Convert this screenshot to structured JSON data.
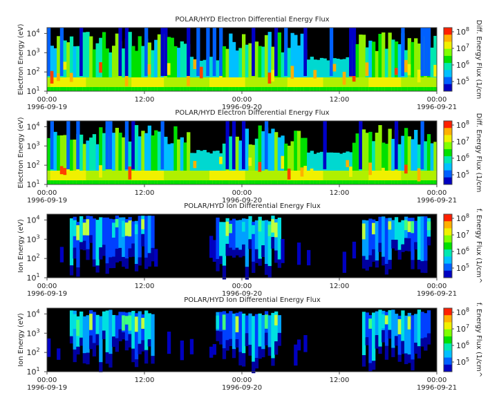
{
  "chart_data": [
    {
      "type": "heatmap",
      "title": "POLAR/HYD  Electron Differential Energy Flux",
      "ylabel": "Electron Energy (eV)",
      "colorbar_label": "Diff. Energy Flux (1/cm",
      "y_scale": "log",
      "ylim": [
        10,
        20000
      ],
      "y_ticks": [
        "10",
        "10",
        "10",
        "10"
      ],
      "y_tick_exps": [
        "1",
        "2",
        "3",
        "4"
      ],
      "x_ticks": [
        "00:00",
        "12:00",
        "00:00",
        "12:00",
        "00:00"
      ],
      "x_dates": [
        "1996-09-19",
        "1996-09-20",
        "1996-09-21"
      ],
      "cbar_ticks": [
        "10",
        "10",
        "10",
        "10"
      ],
      "cbar_exps": [
        "5",
        "6",
        "7",
        "8"
      ]
    },
    {
      "type": "heatmap",
      "title": "POLAR/HYD  Electron Differential Energy Flux",
      "ylabel": "Electron Energy (eV)",
      "colorbar_label": "Diff. Energy Flux (1/cm",
      "y_scale": "log",
      "ylim": [
        10,
        20000
      ],
      "y_ticks": [
        "10",
        "10",
        "10",
        "10"
      ],
      "y_tick_exps": [
        "1",
        "2",
        "3",
        "4"
      ],
      "x_ticks": [
        "00:00",
        "12:00",
        "00:00",
        "12:00",
        "00:00"
      ],
      "x_dates": [
        "1996-09-19",
        "1996-09-20",
        "1996-09-21"
      ],
      "cbar_ticks": [
        "10",
        "10",
        "10",
        "10"
      ],
      "cbar_exps": [
        "5",
        "6",
        "7",
        "8"
      ]
    },
    {
      "type": "heatmap",
      "title": "POLAR/HYD  Ion Differential Energy Flux",
      "ylabel": "Ion Energy (eV)",
      "colorbar_label": "f. Energy Flux (1/cm^",
      "y_scale": "log",
      "ylim": [
        10,
        20000
      ],
      "y_ticks": [
        "10",
        "10",
        "10",
        "10"
      ],
      "y_tick_exps": [
        "1",
        "2",
        "3",
        "4"
      ],
      "x_ticks": [
        "00:00",
        "12:00",
        "00:00",
        "12:00",
        "00:00"
      ],
      "x_dates": [
        "1996-09-19",
        "1996-09-20",
        "1996-09-21"
      ],
      "cbar_ticks": [
        "10",
        "10",
        "10",
        "10"
      ],
      "cbar_exps": [
        "5",
        "6",
        "7",
        "8"
      ]
    },
    {
      "type": "heatmap",
      "title": "POLAR/HYD  Ion Differential Energy Flux",
      "ylabel": "Ion Energy (eV)",
      "colorbar_label": "f. Energy Flux (1/cm^",
      "y_scale": "log",
      "ylim": [
        10,
        20000
      ],
      "y_ticks": [
        "10",
        "10",
        "10",
        "10"
      ],
      "y_tick_exps": [
        "1",
        "2",
        "3",
        "4"
      ],
      "x_ticks": [
        "00:00",
        "12:00",
        "00:00",
        "12:00",
        "00:00"
      ],
      "x_dates": [
        "1996-09-19",
        "1996-09-20",
        "1996-09-21"
      ],
      "cbar_ticks": [
        "10",
        "10",
        "10",
        "10"
      ],
      "cbar_exps": [
        "5",
        "6",
        "7",
        "8"
      ]
    }
  ]
}
